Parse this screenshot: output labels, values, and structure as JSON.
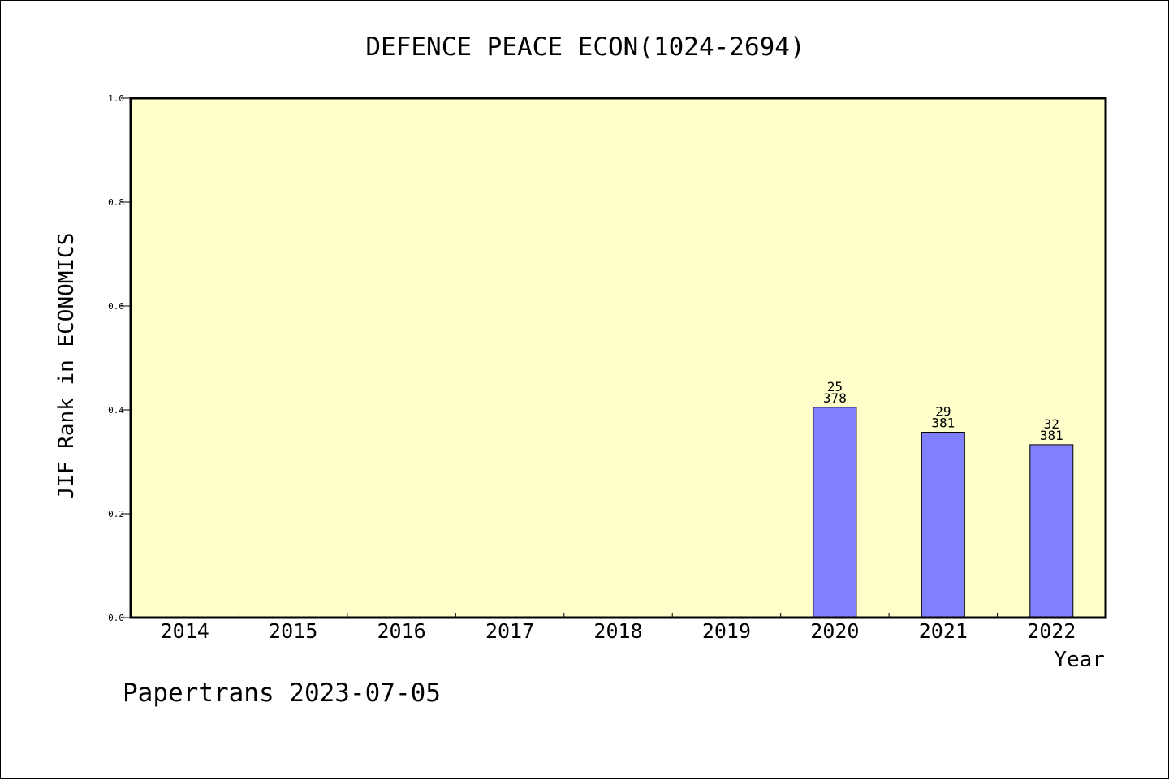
{
  "chart_data": {
    "type": "bar",
    "title": "DEFENCE PEACE ECON(1024-2694)",
    "xlabel": "Year",
    "ylabel": "JIF Rank in ECONOMICS",
    "categories": [
      "2014",
      "2015",
      "2016",
      "2017",
      "2018",
      "2019",
      "2020",
      "2021",
      "2022"
    ],
    "values": [
      null,
      null,
      null,
      null,
      null,
      null,
      0.405,
      0.357,
      0.333
    ],
    "bar_labels": [
      null,
      null,
      null,
      null,
      null,
      null,
      {
        "rank": "25",
        "total": "378"
      },
      {
        "rank": "29",
        "total": "381"
      },
      {
        "rank": "32",
        "total": "381"
      }
    ],
    "ylim": [
      0,
      1.0
    ],
    "yticks": [
      "0.0",
      "0.2",
      "0.4",
      "0.6",
      "0.8",
      "1.0"
    ],
    "grid": false,
    "plot_background": "#ffffcc",
    "bar_color": "#8080ff"
  },
  "footer": "Papertrans 2023-07-05"
}
